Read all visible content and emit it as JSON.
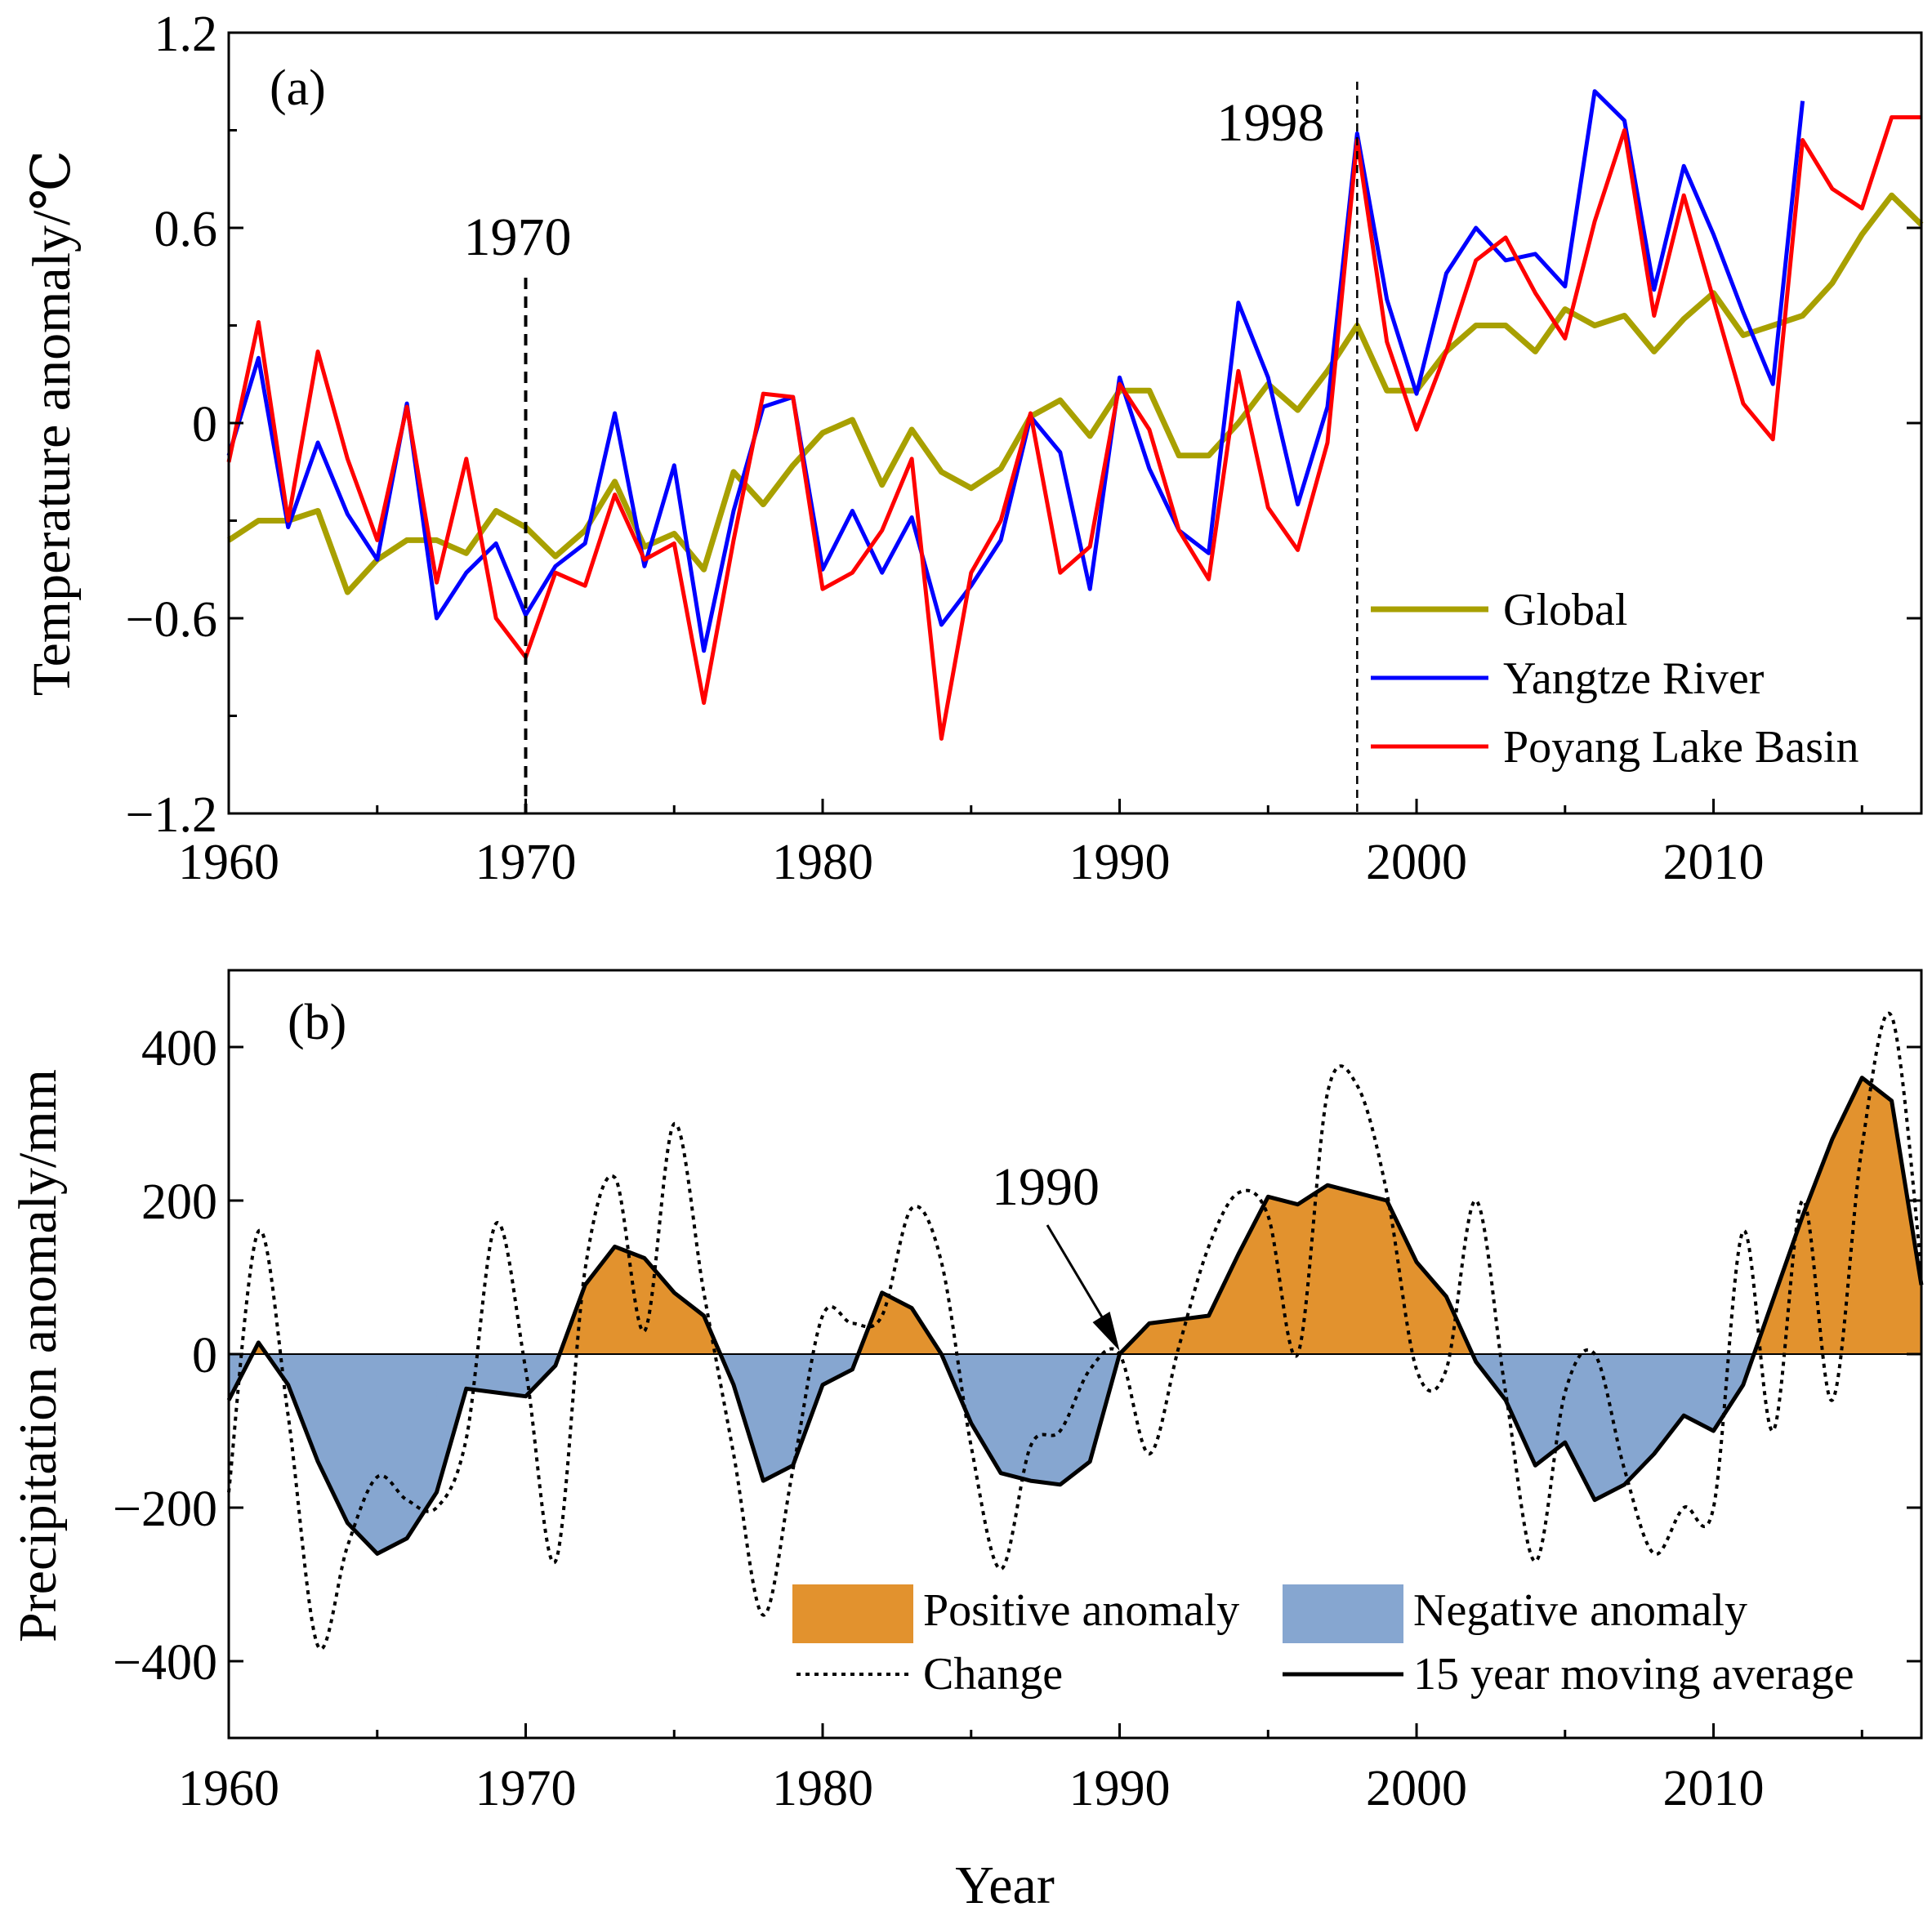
{
  "chart_data": [
    {
      "panel": "(a)",
      "type": "line",
      "xlabel": "",
      "ylabel": "Temperature anomaly/℃",
      "xlim": [
        1960,
        2017
      ],
      "ylim": [
        -1.2,
        1.2
      ],
      "xticks": [
        "1960",
        "1970",
        "1980",
        "1990",
        "2000",
        "2010"
      ],
      "yticks": [
        "−1.2",
        "−0.6",
        "0",
        "0.6",
        "1.2"
      ],
      "legend_position": "bottom-right",
      "colors": {
        "Global": "#a8a000",
        "Yangtze River": "#0000ff",
        "Poyang Lake Basin": "#ff0000"
      },
      "annotations": [
        {
          "text": "1970",
          "x": 1970
        },
        {
          "text": "1998",
          "x": 1998
        }
      ],
      "series": [
        {
          "name": "Global",
          "x": [
            1960,
            1961,
            1962,
            1963,
            1964,
            1965,
            1966,
            1967,
            1968,
            1969,
            1970,
            1971,
            1972,
            1973,
            1974,
            1975,
            1976,
            1977,
            1978,
            1979,
            1980,
            1981,
            1982,
            1983,
            1984,
            1985,
            1986,
            1987,
            1988,
            1989,
            1990,
            1991,
            1992,
            1993,
            1994,
            1995,
            1996,
            1997,
            1998,
            1999,
            2000,
            2001,
            2002,
            2003,
            2004,
            2005,
            2006,
            2007,
            2008,
            2009,
            2010,
            2011,
            2012,
            2013,
            2014,
            2015,
            2016,
            2017
          ],
          "values": [
            -0.36,
            -0.3,
            -0.3,
            -0.27,
            -0.52,
            -0.42,
            -0.36,
            -0.36,
            -0.4,
            -0.27,
            -0.32,
            -0.41,
            -0.33,
            -0.18,
            -0.38,
            -0.34,
            -0.45,
            -0.15,
            -0.25,
            -0.13,
            -0.03,
            0.01,
            -0.19,
            -0.02,
            -0.15,
            -0.2,
            -0.14,
            0.02,
            0.07,
            -0.04,
            0.1,
            0.1,
            -0.1,
            -0.1,
            0.0,
            0.12,
            0.04,
            0.16,
            0.3,
            0.1,
            0.1,
            0.22,
            0.3,
            0.3,
            0.22,
            0.35,
            0.3,
            0.33,
            0.22,
            0.32,
            0.4,
            0.27,
            0.3,
            0.33,
            0.43,
            0.58,
            0.7,
            0.61
          ]
        },
        {
          "name": "Yangtze River",
          "x": [
            1960,
            1961,
            1962,
            1963,
            1964,
            1965,
            1966,
            1967,
            1968,
            1969,
            1970,
            1971,
            1972,
            1973,
            1974,
            1975,
            1976,
            1977,
            1978,
            1979,
            1980,
            1981,
            1982,
            1983,
            1984,
            1985,
            1986,
            1987,
            1988,
            1989,
            1990,
            1991,
            1992,
            1993,
            1994,
            1995,
            1996,
            1997,
            1998,
            1999,
            2000,
            2001,
            2002,
            2003,
            2004,
            2005,
            2006,
            2007,
            2008,
            2009,
            2010,
            2011,
            2012,
            2013
          ],
          "values": [
            -0.1,
            0.2,
            -0.32,
            -0.06,
            -0.28,
            -0.42,
            0.06,
            -0.6,
            -0.46,
            -0.37,
            -0.59,
            -0.44,
            -0.37,
            0.03,
            -0.44,
            -0.13,
            -0.7,
            -0.27,
            0.05,
            0.08,
            -0.45,
            -0.27,
            -0.46,
            -0.29,
            -0.62,
            -0.5,
            -0.36,
            0.02,
            -0.09,
            -0.51,
            0.14,
            -0.14,
            -0.33,
            -0.4,
            0.37,
            0.14,
            -0.25,
            0.05,
            0.89,
            0.38,
            0.09,
            0.46,
            0.6,
            0.5,
            0.52,
            0.42,
            1.02,
            0.93,
            0.41,
            0.79,
            0.58,
            0.34,
            0.12,
            0.99
          ]
        },
        {
          "name": "Poyang Lake Basin",
          "x": [
            1960,
            1961,
            1962,
            1963,
            1964,
            1965,
            1966,
            1967,
            1968,
            1969,
            1970,
            1971,
            1972,
            1973,
            1974,
            1975,
            1976,
            1977,
            1978,
            1979,
            1980,
            1981,
            1982,
            1983,
            1984,
            1985,
            1986,
            1987,
            1988,
            1989,
            1990,
            1991,
            1992,
            1993,
            1994,
            1995,
            1996,
            1997,
            1998,
            1999,
            2000,
            2001,
            2002,
            2003,
            2004,
            2005,
            2006,
            2007,
            2008,
            2009,
            2010,
            2011,
            2012,
            2013,
            2014,
            2015,
            2016,
            2017
          ],
          "values": [
            -0.12,
            0.31,
            -0.3,
            0.22,
            -0.11,
            -0.36,
            0.05,
            -0.49,
            -0.11,
            -0.6,
            -0.72,
            -0.46,
            -0.5,
            -0.22,
            -0.42,
            -0.37,
            -0.86,
            -0.36,
            0.09,
            0.08,
            -0.51,
            -0.46,
            -0.33,
            -0.11,
            -0.97,
            -0.46,
            -0.3,
            0.03,
            -0.46,
            -0.38,
            0.12,
            -0.02,
            -0.33,
            -0.48,
            0.16,
            -0.26,
            -0.39,
            -0.06,
            0.87,
            0.25,
            -0.02,
            0.22,
            0.5,
            0.57,
            0.4,
            0.26,
            0.62,
            0.9,
            0.33,
            0.7,
            0.38,
            0.06,
            -0.05,
            0.87,
            0.72,
            0.66,
            0.94,
            0.94
          ]
        }
      ]
    },
    {
      "panel": "(b)",
      "type": "area",
      "xlabel": "Year",
      "ylabel": "Precipitation anomaly/mm",
      "xlim": [
        1960,
        2017
      ],
      "ylim": [
        -500,
        500
      ],
      "xticks": [
        "1960",
        "1970",
        "1980",
        "1990",
        "2000",
        "2010"
      ],
      "yticks": [
        "−400",
        "−200",
        "0",
        "200",
        "400"
      ],
      "legend_position": "bottom-right",
      "fill_colors": {
        "positive": "#e2922e",
        "negative": "#86a6d0"
      },
      "annotations": [
        {
          "text": "1990",
          "x": 1990,
          "y": 0
        }
      ],
      "legend": [
        "Positive anomaly",
        "Negative anomaly",
        "Change",
        "15 year  moving average"
      ],
      "series": [
        {
          "name": "Change",
          "style": "dotted",
          "x": [
            1960,
            1961,
            1962,
            1963,
            1964,
            1965,
            1966,
            1967,
            1968,
            1969,
            1970,
            1971,
            1972,
            1973,
            1974,
            1975,
            1976,
            1977,
            1978,
            1979,
            1980,
            1981,
            1982,
            1983,
            1984,
            1985,
            1986,
            1987,
            1988,
            1989,
            1990,
            1991,
            1992,
            1993,
            1994,
            1995,
            1996,
            1997,
            1998,
            1999,
            2000,
            2001,
            2002,
            2003,
            2004,
            2005,
            2006,
            2007,
            2008,
            2009,
            2010,
            2011,
            2012,
            2013,
            2014,
            2015,
            2016,
            2017
          ],
          "values": [
            -180,
            160,
            -80,
            -380,
            -250,
            -160,
            -190,
            -200,
            -110,
            170,
            -20,
            -270,
            110,
            230,
            30,
            300,
            80,
            -130,
            -340,
            -150,
            50,
            40,
            50,
            190,
            120,
            -120,
            -280,
            -120,
            -100,
            -20,
            0,
            -130,
            10,
            140,
            210,
            180,
            0,
            340,
            350,
            210,
            -20,
            -20,
            200,
            -50,
            -270,
            -50,
            0,
            -150,
            -260,
            -200,
            -200,
            160,
            -100,
            200,
            -60,
            270,
            440,
            110
          ]
        },
        {
          "name": "15 year  moving average",
          "style": "solid",
          "x": [
            1960,
            1961,
            1962,
            1963,
            1964,
            1965,
            1966,
            1967,
            1968,
            1969,
            1970,
            1971,
            1972,
            1973,
            1974,
            1975,
            1976,
            1977,
            1978,
            1979,
            1980,
            1981,
            1982,
            1983,
            1984,
            1985,
            1986,
            1987,
            1988,
            1989,
            1990,
            1991,
            1992,
            1993,
            1994,
            1995,
            1996,
            1997,
            1998,
            1999,
            2000,
            2001,
            2002,
            2003,
            2004,
            2005,
            2006,
            2007,
            2008,
            2009,
            2010,
            2011,
            2012,
            2013,
            2014,
            2015,
            2016,
            2017
          ],
          "values": [
            -60,
            15,
            -40,
            -140,
            -220,
            -260,
            -240,
            -180,
            -45,
            -50,
            -55,
            -15,
            90,
            140,
            125,
            80,
            50,
            -40,
            -165,
            -145,
            -40,
            -20,
            80,
            60,
            0,
            -90,
            -155,
            -165,
            -170,
            -140,
            0,
            40,
            45,
            50,
            130,
            205,
            195,
            220,
            210,
            200,
            120,
            75,
            -10,
            -60,
            -145,
            -115,
            -190,
            -170,
            -130,
            -80,
            -100,
            -40,
            70,
            180,
            280,
            360,
            330,
            90
          ]
        }
      ]
    }
  ]
}
